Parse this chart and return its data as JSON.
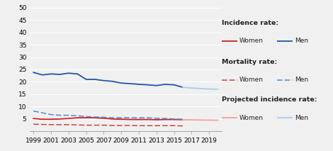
{
  "years_main": [
    1999,
    2000,
    2001,
    2002,
    2003,
    2004,
    2005,
    2006,
    2007,
    2008,
    2009,
    2010,
    2011,
    2012,
    2013,
    2014,
    2015,
    2016
  ],
  "years_proj": [
    2016,
    2017,
    2018,
    2019,
    2020
  ],
  "incidence_men": [
    23.8,
    22.8,
    23.2,
    23.0,
    23.5,
    23.2,
    21.0,
    21.0,
    20.5,
    20.2,
    19.5,
    19.3,
    19.0,
    18.8,
    18.5,
    19.0,
    18.8,
    17.8
  ],
  "incidence_women": [
    5.2,
    4.9,
    4.9,
    5.0,
    5.2,
    5.5,
    5.5,
    5.5,
    5.3,
    5.0,
    4.9,
    4.8,
    4.8,
    4.8,
    4.7,
    4.8,
    4.8,
    4.7
  ],
  "mortality_men": [
    8.2,
    7.5,
    6.8,
    6.5,
    6.5,
    6.3,
    6.0,
    5.8,
    5.7,
    5.5,
    5.5,
    5.5,
    5.5,
    5.5,
    5.3,
    5.2,
    5.0,
    4.9
  ],
  "mortality_women": [
    2.9,
    2.8,
    2.7,
    2.7,
    2.7,
    2.6,
    2.5,
    2.5,
    2.5,
    2.4,
    2.4,
    2.4,
    2.3,
    2.3,
    2.3,
    2.3,
    2.3,
    2.2
  ],
  "proj_incidence_men": [
    17.8,
    17.5,
    17.3,
    17.1,
    17.0
  ],
  "proj_incidence_women": [
    4.7,
    4.65,
    4.6,
    4.55,
    4.5
  ],
  "color_men_incidence": "#2255aa",
  "color_women_incidence": "#cc2222",
  "color_men_mortality": "#5588cc",
  "color_women_mortality": "#cc4444",
  "color_men_proj": "#aaccee",
  "color_women_proj": "#f0a0a0",
  "bg_color": "#f0f0f0",
  "grid_color": "#ffffff",
  "ylim": [
    0,
    50
  ],
  "yticks": [
    5,
    10,
    15,
    20,
    25,
    30,
    35,
    40,
    45,
    50
  ],
  "xtick_positions": [
    1999,
    2001,
    2003,
    2005,
    2007,
    2009,
    2011,
    2013,
    2015,
    2017,
    2019
  ],
  "xtick_labels": [
    "1999",
    "2001",
    "2003",
    "2005",
    "2007",
    "2009",
    "2011",
    "2013",
    "2015",
    "2017",
    "2019"
  ],
  "legend_title_incidence": "Incidence rate:",
  "legend_title_mortality": "Mortality rate:",
  "legend_title_proj": "Projected incidence rate:",
  "legend_women": "Women",
  "legend_men": "Men",
  "tick_fontsize": 6.5,
  "legend_fontsize": 6.5,
  "legend_title_fontsize": 6.8
}
